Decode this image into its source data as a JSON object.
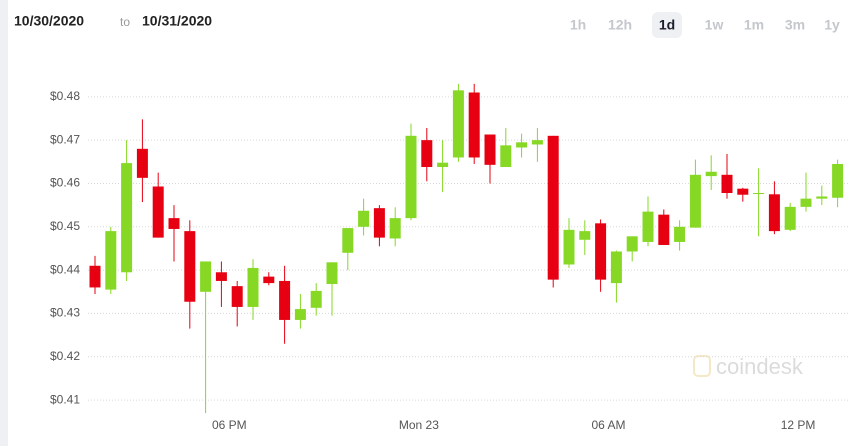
{
  "header": {
    "start_date": "10/30/2020",
    "separator": "to",
    "end_date": "10/31/2020",
    "ranges": [
      "1h",
      "12h",
      "1d",
      "1w",
      "1m",
      "3m",
      "1y"
    ],
    "active_range": "1d",
    "watermark": "coindesk"
  },
  "chart_data": {
    "type": "candlestick",
    "categories": [
      null,
      null,
      null,
      null,
      null,
      null,
      null,
      null,
      null,
      "06 PM",
      null,
      null,
      null,
      null,
      null,
      null,
      null,
      null,
      null,
      null,
      null,
      "Mon 23",
      null,
      null,
      null,
      null,
      null,
      null,
      null,
      null,
      null,
      null,
      null,
      "06 AM",
      null,
      null,
      null,
      null,
      null,
      null,
      null,
      null,
      null,
      null,
      null,
      "12 PM",
      null,
      null
    ],
    "open": [
      0.441,
      0.4355,
      0.4395,
      0.468,
      0.4593,
      0.452,
      0.449,
      0.435,
      0.4395,
      0.4363,
      0.4315,
      0.4385,
      0.4375,
      0.4285,
      0.4313,
      0.4368,
      0.444,
      0.45,
      0.4543,
      0.4473,
      0.452,
      0.47,
      0.4638,
      0.466,
      0.481,
      0.4713,
      0.4638,
      0.4683,
      0.469,
      0.471,
      0.4413,
      0.447,
      0.4508,
      0.437,
      0.4443,
      0.4465,
      0.4528,
      0.4465,
      0.4498,
      0.4617,
      0.462,
      0.4588,
      0.4576,
      0.4575,
      0.4493,
      0.4546,
      0.4565,
      0.4567
    ],
    "high": [
      0.4433,
      0.45,
      0.47,
      0.4748,
      0.4625,
      0.455,
      0.4515,
      0.442,
      0.442,
      0.4375,
      0.4425,
      0.4395,
      0.441,
      0.4345,
      0.437,
      0.4418,
      0.4497,
      0.4565,
      0.455,
      0.4545,
      0.4738,
      0.4728,
      0.47,
      0.483,
      0.483,
      0.4713,
      0.4728,
      0.4715,
      0.4728,
      0.471,
      0.452,
      0.4515,
      0.4517,
      0.4445,
      0.4478,
      0.457,
      0.454,
      0.4515,
      0.4655,
      0.4665,
      0.4668,
      0.459,
      0.4635,
      0.4605,
      0.4555,
      0.4625,
      0.4595,
      0.4655
    ],
    "low": [
      0.4345,
      0.4345,
      0.4375,
      0.4557,
      0.4475,
      0.442,
      0.4265,
      0.407,
      0.4315,
      0.427,
      0.4285,
      0.4365,
      0.423,
      0.4265,
      0.4295,
      0.4295,
      0.44,
      0.448,
      0.4455,
      0.4455,
      0.4515,
      0.4605,
      0.458,
      0.465,
      0.4645,
      0.46,
      0.4638,
      0.466,
      0.465,
      0.436,
      0.4405,
      0.4435,
      0.435,
      0.4325,
      0.442,
      0.4455,
      0.4458,
      0.4445,
      0.4498,
      0.4585,
      0.4565,
      0.4558,
      0.4478,
      0.4483,
      0.449,
      0.4535,
      0.455,
      0.4545
    ],
    "close": [
      0.436,
      0.449,
      0.4647,
      0.4613,
      0.4475,
      0.4495,
      0.4327,
      0.442,
      0.4375,
      0.4315,
      0.4405,
      0.437,
      0.4285,
      0.431,
      0.4352,
      0.4418,
      0.4497,
      0.4537,
      0.4475,
      0.452,
      0.471,
      0.4638,
      0.4648,
      0.4815,
      0.466,
      0.4643,
      0.4688,
      0.4695,
      0.47,
      0.4378,
      0.4493,
      0.449,
      0.4378,
      0.4443,
      0.4478,
      0.4535,
      0.4458,
      0.45,
      0.462,
      0.4627,
      0.4578,
      0.4574,
      0.4578,
      0.449,
      0.4546,
      0.4565,
      0.457,
      0.4645
    ],
    "up_color": "#86d824",
    "down_color": "#e60012",
    "ylim": [
      0.3994,
      0.4885
    ],
    "yticks": [
      {
        "value": 0.41,
        "label": "$0.41"
      },
      {
        "value": 0.42,
        "label": "$0.42"
      },
      {
        "value": 0.43,
        "label": "$0.43"
      },
      {
        "value": 0.44,
        "label": "$0.44"
      },
      {
        "value": 0.45,
        "label": "$0.45"
      },
      {
        "value": 0.46,
        "label": "$0.46"
      },
      {
        "value": 0.47,
        "label": "$0.47"
      },
      {
        "value": 0.48,
        "label": "$0.48"
      }
    ],
    "grid": true
  }
}
